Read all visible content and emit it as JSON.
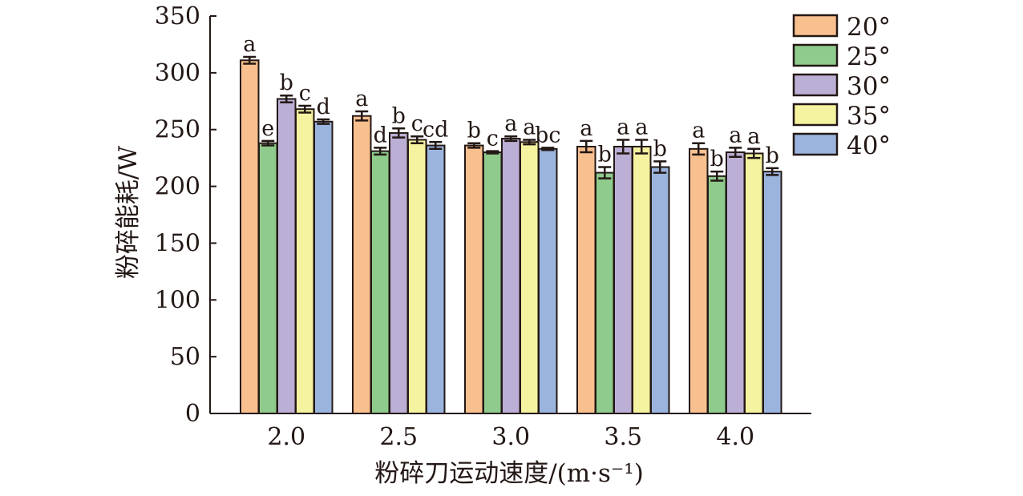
{
  "chart_data": {
    "type": "bar",
    "title": "",
    "xlabel": "粉碎刀运动速度/(m·s⁻¹)",
    "ylabel": "粉碎能耗/W",
    "ylim": [
      0,
      350
    ],
    "yticks": [
      "0",
      "50",
      "100",
      "150",
      "200",
      "250",
      "300",
      "350"
    ],
    "categories": [
      "2.0",
      "2.5",
      "3.0",
      "3.5",
      "4.0"
    ],
    "grid": false,
    "legend_position": "top-right",
    "series": [
      {
        "name": "20°",
        "color": "#f9c08f",
        "values": [
          311,
          262,
          236,
          235,
          233
        ],
        "errors": [
          3,
          4,
          2,
          5,
          5
        ],
        "labels": [
          "a",
          "a",
          "b",
          "a",
          "a"
        ]
      },
      {
        "name": "25°",
        "color": "#8fcb8c",
        "values": [
          238,
          231,
          230,
          212,
          209
        ],
        "errors": [
          2,
          3,
          1,
          5,
          4
        ],
        "labels": [
          "e",
          "d",
          "c",
          "b",
          "b"
        ]
      },
      {
        "name": "30°",
        "color": "#bcafd5",
        "values": [
          277,
          247,
          242,
          235,
          230
        ],
        "errors": [
          3,
          4,
          2,
          6,
          4
        ],
        "labels": [
          "b",
          "b",
          "a",
          "a",
          "a"
        ]
      },
      {
        "name": "35°",
        "color": "#f5f3a0",
        "values": [
          268,
          241,
          239,
          235,
          229
        ],
        "errors": [
          3,
          3,
          2,
          6,
          4
        ],
        "labels": [
          "c",
          "c",
          "a",
          "a",
          "a"
        ]
      },
      {
        "name": "40°",
        "color": "#9bb4dd",
        "values": [
          257,
          236,
          233,
          217,
          213
        ],
        "errors": [
          2,
          3,
          1,
          5,
          3
        ],
        "labels": [
          "d",
          "cd",
          "bc",
          "b",
          "b"
        ]
      }
    ]
  }
}
